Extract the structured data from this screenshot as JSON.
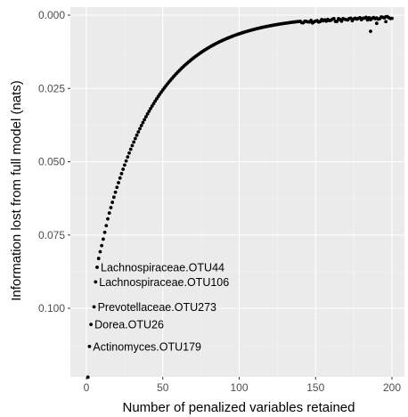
{
  "chart_data": {
    "type": "scatter",
    "title": "",
    "xlabel": "Number of penalized variables retained",
    "ylabel": "Information lost from full model (nats)",
    "xlim": [
      -5,
      207
    ],
    "ylim": [
      0,
      0.1235
    ],
    "y_reversed": true,
    "grid": true,
    "x_ticks": [
      0,
      50,
      100,
      150,
      200
    ],
    "x_tick_labels": [
      "0",
      "50",
      "100",
      "150",
      "200"
    ],
    "y_ticks": [
      0.0,
      0.025,
      0.05,
      0.075,
      0.1
    ],
    "y_tick_labels": [
      "0.000",
      "0.025",
      "0.050",
      "0.075",
      "0.100"
    ],
    "points": [
      {
        "x": 1,
        "y": 0.1235
      },
      {
        "x": 2,
        "y": 0.113
      },
      {
        "x": 3,
        "y": 0.1055
      },
      {
        "x": 5,
        "y": 0.0995
      },
      {
        "x": 6,
        "y": 0.091
      },
      {
        "x": 7,
        "y": 0.086
      },
      {
        "x": 8,
        "y": 0.083
      },
      {
        "x": 9,
        "y": 0.0807
      },
      {
        "x": 10,
        "y": 0.0786
      },
      {
        "x": 11,
        "y": 0.0764
      },
      {
        "x": 12,
        "y": 0.0741
      },
      {
        "x": 13,
        "y": 0.0718
      },
      {
        "x": 14,
        "y": 0.0695
      }
    ],
    "curve": {
      "x_start": 15,
      "x_end": 200,
      "y_start": 0.0675,
      "decay": 36
    },
    "outliers": [
      {
        "x": 186,
        "y": 0.0055
      },
      {
        "x": 190,
        "y": 0.0028
      },
      {
        "x": 196,
        "y": 0.0022
      }
    ],
    "annotations": [
      {
        "text": "Lachnospiraceae.OTU44",
        "x": 7,
        "y": 0.086
      },
      {
        "text": "Lachnospiraceae.OTU106",
        "x": 6,
        "y": 0.091
      },
      {
        "text": "Prevotellaceae.OTU273",
        "x": 5,
        "y": 0.0995
      },
      {
        "text": "Dorea.OTU26",
        "x": 3,
        "y": 0.1055
      },
      {
        "text": "Actinomyces.OTU179",
        "x": 2,
        "y": 0.113
      }
    ]
  }
}
